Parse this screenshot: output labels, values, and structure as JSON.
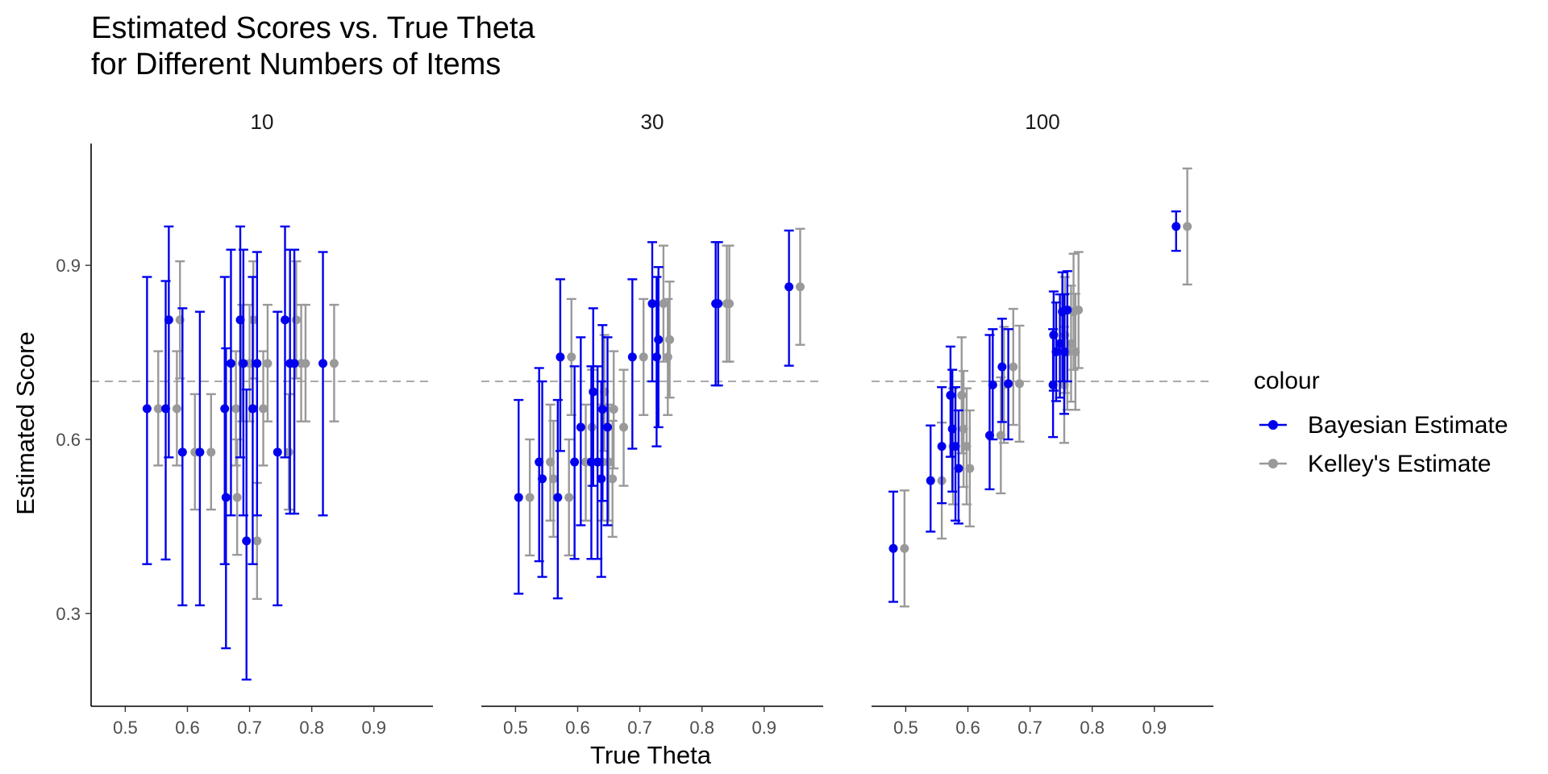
{
  "chart_data": {
    "type": "scatter",
    "title_lines": [
      "Estimated Scores vs. True Theta",
      "for Different Numbers of Items"
    ],
    "xlabel": "True Theta",
    "ylabel": "Estimated Score",
    "facets": [
      "10",
      "30",
      "100"
    ],
    "xlim": [
      0.445,
      0.995
    ],
    "ylim": [
      0.14,
      1.11
    ],
    "x_ticks": [
      0.5,
      0.6,
      0.7,
      0.8,
      0.9
    ],
    "x_tick_labels": [
      "0.5",
      "0.6",
      "0.7",
      "0.8",
      "0.9"
    ],
    "y_ticks": [
      0.3,
      0.6,
      0.9
    ],
    "y_tick_labels": [
      "0.3",
      "0.6",
      "0.9"
    ],
    "reference_line": {
      "y": 0.7,
      "style": "dashed",
      "color": "#aaaaaa"
    },
    "grid": false,
    "legend": {
      "title": "colour",
      "position": "right",
      "entries": [
        {
          "name": "Bayesian Estimate",
          "color": "#0000ee"
        },
        {
          "name": "Kelley's Estimate",
          "color": "#999999"
        }
      ]
    },
    "series": [
      {
        "name": "Bayesian Estimate",
        "color": "#0000ee",
        "panels": [
          [
            {
              "x": 0.535,
              "y": 0.653,
              "lo": 0.385,
              "hi": 0.88
            },
            {
              "x": 0.565,
              "y": 0.653,
              "lo": 0.393,
              "hi": 0.873
            },
            {
              "x": 0.57,
              "y": 0.806,
              "lo": 0.569,
              "hi": 0.967
            },
            {
              "x": 0.592,
              "y": 0.578,
              "lo": 0.314,
              "hi": 0.826
            },
            {
              "x": 0.62,
              "y": 0.578,
              "lo": 0.314,
              "hi": 0.82
            },
            {
              "x": 0.66,
              "y": 0.653,
              "lo": 0.385,
              "hi": 0.88
            },
            {
              "x": 0.662,
              "y": 0.5,
              "lo": 0.24,
              "hi": 0.757
            },
            {
              "x": 0.67,
              "y": 0.731,
              "lo": 0.469,
              "hi": 0.927
            },
            {
              "x": 0.685,
              "y": 0.806,
              "lo": 0.569,
              "hi": 0.967
            },
            {
              "x": 0.69,
              "y": 0.731,
              "lo": 0.469,
              "hi": 0.927
            },
            {
              "x": 0.695,
              "y": 0.425,
              "lo": 0.186,
              "hi": 0.686
            },
            {
              "x": 0.705,
              "y": 0.653,
              "lo": 0.385,
              "hi": 0.88
            },
            {
              "x": 0.712,
              "y": 0.731,
              "lo": 0.469,
              "hi": 0.923
            },
            {
              "x": 0.745,
              "y": 0.578,
              "lo": 0.314,
              "hi": 0.82
            },
            {
              "x": 0.757,
              "y": 0.806,
              "lo": 0.569,
              "hi": 0.967
            },
            {
              "x": 0.765,
              "y": 0.731,
              "lo": 0.472,
              "hi": 0.927
            },
            {
              "x": 0.772,
              "y": 0.731,
              "lo": 0.472,
              "hi": 0.927
            },
            {
              "x": 0.818,
              "y": 0.731,
              "lo": 0.469,
              "hi": 0.923
            }
          ],
          [
            {
              "x": 0.505,
              "y": 0.5,
              "lo": 0.334,
              "hi": 0.668
            },
            {
              "x": 0.538,
              "y": 0.561,
              "lo": 0.39,
              "hi": 0.723
            },
            {
              "x": 0.543,
              "y": 0.532,
              "lo": 0.363,
              "hi": 0.7
            },
            {
              "x": 0.568,
              "y": 0.5,
              "lo": 0.326,
              "hi": 0.668
            },
            {
              "x": 0.572,
              "y": 0.742,
              "lo": 0.58,
              "hi": 0.876
            },
            {
              "x": 0.595,
              "y": 0.561,
              "lo": 0.394,
              "hi": 0.726
            },
            {
              "x": 0.605,
              "y": 0.621,
              "lo": 0.452,
              "hi": 0.776
            },
            {
              "x": 0.622,
              "y": 0.561,
              "lo": 0.394,
              "hi": 0.726
            },
            {
              "x": 0.625,
              "y": 0.682,
              "lo": 0.52,
              "hi": 0.826
            },
            {
              "x": 0.632,
              "y": 0.561,
              "lo": 0.394,
              "hi": 0.726
            },
            {
              "x": 0.638,
              "y": 0.532,
              "lo": 0.363,
              "hi": 0.7
            },
            {
              "x": 0.64,
              "y": 0.652,
              "lo": 0.494,
              "hi": 0.797
            },
            {
              "x": 0.648,
              "y": 0.621,
              "lo": 0.452,
              "hi": 0.776
            },
            {
              "x": 0.688,
              "y": 0.742,
              "lo": 0.584,
              "hi": 0.876
            },
            {
              "x": 0.72,
              "y": 0.834,
              "lo": 0.7,
              "hi": 0.94
            },
            {
              "x": 0.727,
              "y": 0.742,
              "lo": 0.588,
              "hi": 0.88
            },
            {
              "x": 0.73,
              "y": 0.772,
              "lo": 0.621,
              "hi": 0.897
            },
            {
              "x": 0.822,
              "y": 0.834,
              "lo": 0.693,
              "hi": 0.94
            },
            {
              "x": 0.826,
              "y": 0.834,
              "lo": 0.693,
              "hi": 0.94
            },
            {
              "x": 0.94,
              "y": 0.863,
              "lo": 0.727,
              "hi": 0.96
            }
          ],
          [
            {
              "x": 0.48,
              "y": 0.412,
              "lo": 0.32,
              "hi": 0.51
            },
            {
              "x": 0.54,
              "y": 0.529,
              "lo": 0.441,
              "hi": 0.624
            },
            {
              "x": 0.558,
              "y": 0.588,
              "lo": 0.49,
              "hi": 0.69
            },
            {
              "x": 0.572,
              "y": 0.676,
              "lo": 0.57,
              "hi": 0.76
            },
            {
              "x": 0.575,
              "y": 0.618,
              "lo": 0.51,
              "hi": 0.72
            },
            {
              "x": 0.58,
              "y": 0.588,
              "lo": 0.46,
              "hi": 0.69
            },
            {
              "x": 0.585,
              "y": 0.55,
              "lo": 0.455,
              "hi": 0.65
            },
            {
              "x": 0.635,
              "y": 0.607,
              "lo": 0.514,
              "hi": 0.78
            },
            {
              "x": 0.64,
              "y": 0.694,
              "lo": 0.6,
              "hi": 0.79
            },
            {
              "x": 0.655,
              "y": 0.725,
              "lo": 0.63,
              "hi": 0.808
            },
            {
              "x": 0.665,
              "y": 0.696,
              "lo": 0.6,
              "hi": 0.79
            },
            {
              "x": 0.737,
              "y": 0.694,
              "lo": 0.604,
              "hi": 0.79
            },
            {
              "x": 0.738,
              "y": 0.78,
              "lo": 0.684,
              "hi": 0.855
            },
            {
              "x": 0.742,
              "y": 0.751,
              "lo": 0.666,
              "hi": 0.836
            },
            {
              "x": 0.748,
              "y": 0.765,
              "lo": 0.672,
              "hi": 0.85
            },
            {
              "x": 0.752,
              "y": 0.82,
              "lo": 0.7,
              "hi": 0.888
            },
            {
              "x": 0.755,
              "y": 0.751,
              "lo": 0.644,
              "hi": 0.85
            },
            {
              "x": 0.76,
              "y": 0.823,
              "lo": 0.7,
              "hi": 0.89
            },
            {
              "x": 0.935,
              "y": 0.967,
              "lo": 0.925,
              "hi": 0.993
            }
          ]
        ]
      },
      {
        "name": "Kelley's Estimate",
        "color": "#999999",
        "panels": [
          [
            {
              "x": 0.553,
              "y": 0.653,
              "lo": 0.555,
              "hi": 0.752
            },
            {
              "x": 0.583,
              "y": 0.653,
              "lo": 0.555,
              "hi": 0.752
            },
            {
              "x": 0.588,
              "y": 0.806,
              "lo": 0.705,
              "hi": 0.907
            },
            {
              "x": 0.612,
              "y": 0.578,
              "lo": 0.479,
              "hi": 0.678
            },
            {
              "x": 0.638,
              "y": 0.578,
              "lo": 0.479,
              "hi": 0.678
            },
            {
              "x": 0.678,
              "y": 0.653,
              "lo": 0.555,
              "hi": 0.752
            },
            {
              "x": 0.68,
              "y": 0.5,
              "lo": 0.401,
              "hi": 0.6
            },
            {
              "x": 0.688,
              "y": 0.731,
              "lo": 0.631,
              "hi": 0.832
            },
            {
              "x": 0.7,
              "y": 0.731,
              "lo": 0.631,
              "hi": 0.832
            },
            {
              "x": 0.706,
              "y": 0.806,
              "lo": 0.705,
              "hi": 0.907
            },
            {
              "x": 0.712,
              "y": 0.425,
              "lo": 0.325,
              "hi": 0.525
            },
            {
              "x": 0.722,
              "y": 0.653,
              "lo": 0.555,
              "hi": 0.752
            },
            {
              "x": 0.729,
              "y": 0.731,
              "lo": 0.631,
              "hi": 0.832
            },
            {
              "x": 0.763,
              "y": 0.578,
              "lo": 0.479,
              "hi": 0.678
            },
            {
              "x": 0.775,
              "y": 0.806,
              "lo": 0.705,
              "hi": 0.907
            },
            {
              "x": 0.783,
              "y": 0.731,
              "lo": 0.631,
              "hi": 0.832
            },
            {
              "x": 0.79,
              "y": 0.731,
              "lo": 0.631,
              "hi": 0.832
            },
            {
              "x": 0.836,
              "y": 0.731,
              "lo": 0.631,
              "hi": 0.832
            }
          ],
          [
            {
              "x": 0.523,
              "y": 0.5,
              "lo": 0.4,
              "hi": 0.6
            },
            {
              "x": 0.556,
              "y": 0.561,
              "lo": 0.46,
              "hi": 0.66
            },
            {
              "x": 0.561,
              "y": 0.532,
              "lo": 0.432,
              "hi": 0.632
            },
            {
              "x": 0.586,
              "y": 0.5,
              "lo": 0.4,
              "hi": 0.6
            },
            {
              "x": 0.59,
              "y": 0.742,
              "lo": 0.642,
              "hi": 0.842
            },
            {
              "x": 0.613,
              "y": 0.561,
              "lo": 0.46,
              "hi": 0.66
            },
            {
              "x": 0.623,
              "y": 0.621,
              "lo": 0.52,
              "hi": 0.72
            },
            {
              "x": 0.64,
              "y": 0.561,
              "lo": 0.46,
              "hi": 0.66
            },
            {
              "x": 0.643,
              "y": 0.682,
              "lo": 0.58,
              "hi": 0.78
            },
            {
              "x": 0.65,
              "y": 0.561,
              "lo": 0.46,
              "hi": 0.66
            },
            {
              "x": 0.656,
              "y": 0.532,
              "lo": 0.432,
              "hi": 0.632
            },
            {
              "x": 0.658,
              "y": 0.652,
              "lo": 0.55,
              "hi": 0.752
            },
            {
              "x": 0.674,
              "y": 0.621,
              "lo": 0.52,
              "hi": 0.72
            },
            {
              "x": 0.706,
              "y": 0.742,
              "lo": 0.642,
              "hi": 0.842
            },
            {
              "x": 0.738,
              "y": 0.834,
              "lo": 0.734,
              "hi": 0.934
            },
            {
              "x": 0.745,
              "y": 0.742,
              "lo": 0.642,
              "hi": 0.842
            },
            {
              "x": 0.748,
              "y": 0.772,
              "lo": 0.672,
              "hi": 0.872
            },
            {
              "x": 0.84,
              "y": 0.834,
              "lo": 0.734,
              "hi": 0.934
            },
            {
              "x": 0.844,
              "y": 0.834,
              "lo": 0.734,
              "hi": 0.934
            },
            {
              "x": 0.958,
              "y": 0.863,
              "lo": 0.763,
              "hi": 0.963
            }
          ],
          [
            {
              "x": 0.498,
              "y": 0.412,
              "lo": 0.312,
              "hi": 0.512
            },
            {
              "x": 0.558,
              "y": 0.529,
              "lo": 0.429,
              "hi": 0.629
            },
            {
              "x": 0.576,
              "y": 0.588,
              "lo": 0.488,
              "hi": 0.688
            },
            {
              "x": 0.59,
              "y": 0.676,
              "lo": 0.576,
              "hi": 0.776
            },
            {
              "x": 0.593,
              "y": 0.618,
              "lo": 0.518,
              "hi": 0.718
            },
            {
              "x": 0.598,
              "y": 0.588,
              "lo": 0.488,
              "hi": 0.688
            },
            {
              "x": 0.603,
              "y": 0.55,
              "lo": 0.45,
              "hi": 0.65
            },
            {
              "x": 0.653,
              "y": 0.607,
              "lo": 0.507,
              "hi": 0.707
            },
            {
              "x": 0.658,
              "y": 0.694,
              "lo": 0.594,
              "hi": 0.794
            },
            {
              "x": 0.673,
              "y": 0.725,
              "lo": 0.625,
              "hi": 0.825
            },
            {
              "x": 0.683,
              "y": 0.696,
              "lo": 0.596,
              "hi": 0.796
            },
            {
              "x": 0.755,
              "y": 0.694,
              "lo": 0.594,
              "hi": 0.794
            },
            {
              "x": 0.756,
              "y": 0.78,
              "lo": 0.68,
              "hi": 0.88
            },
            {
              "x": 0.76,
              "y": 0.751,
              "lo": 0.651,
              "hi": 0.851
            },
            {
              "x": 0.766,
              "y": 0.765,
              "lo": 0.665,
              "hi": 0.865
            },
            {
              "x": 0.77,
              "y": 0.82,
              "lo": 0.72,
              "hi": 0.92
            },
            {
              "x": 0.773,
              "y": 0.751,
              "lo": 0.651,
              "hi": 0.851
            },
            {
              "x": 0.778,
              "y": 0.823,
              "lo": 0.723,
              "hi": 0.923
            },
            {
              "x": 0.953,
              "y": 0.967,
              "lo": 0.867,
              "hi": 1.067
            }
          ]
        ]
      }
    ]
  }
}
